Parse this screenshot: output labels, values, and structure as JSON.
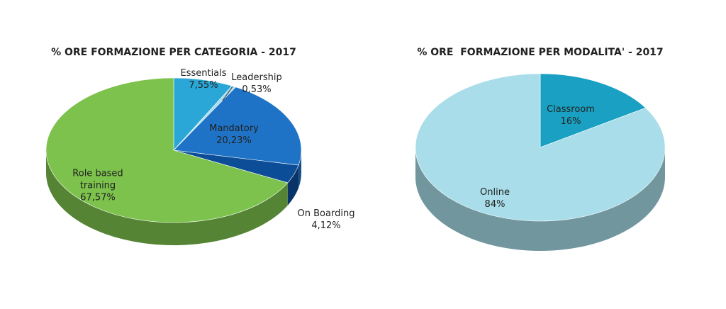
{
  "chart_data": [
    {
      "type": "pie",
      "title": "% ORE FORMAZIONE PER CATEGORIA - 2017",
      "categories": [
        "Essentials",
        "Leadership",
        "Mandatory",
        "On Boarding",
        "Role based training"
      ],
      "values": [
        7.55,
        0.53,
        20.23,
        4.12,
        67.57
      ],
      "value_labels": [
        "7,55%",
        "0,53%",
        "20,23%",
        "4,12%",
        "67,57%"
      ],
      "colors": [
        "#2aa7d6",
        "#a6dced",
        "#1f73c6",
        "#0c4d97",
        "#7cc24c"
      ]
    },
    {
      "type": "pie",
      "title": "% ORE  FORMAZIONE PER MODALITA' - 2017",
      "categories": [
        "Classroom",
        "Online"
      ],
      "values": [
        16,
        84
      ],
      "value_labels": [
        "16%",
        "84%"
      ],
      "colors": [
        "#19a0c2",
        "#a8dde9"
      ]
    }
  ]
}
